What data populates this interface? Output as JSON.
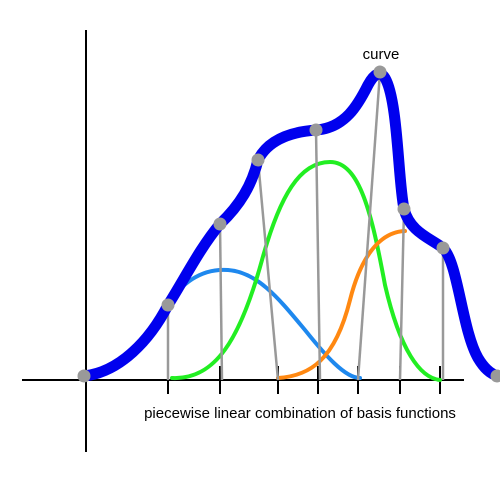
{
  "diagram": {
    "curve_label": "curve",
    "caption": "piecewise linear combination of basis functions"
  },
  "colors": {
    "background": "#ffffff",
    "axis": "#000000",
    "curve": "#0000ee",
    "basis_blue": "#1e88ee",
    "basis_green": "#22ee22",
    "basis_orange": "#ff8811",
    "control_lines": "#999999",
    "control_points": "#999999"
  }
}
